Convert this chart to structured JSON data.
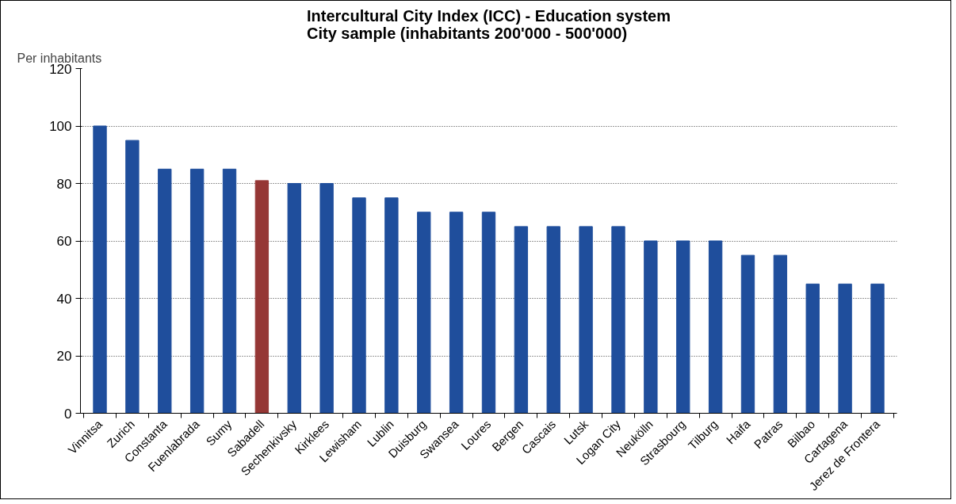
{
  "chart_data": {
    "type": "bar",
    "title": "Intercultural City Index (ICC) - Education system\nCity sample (inhabitants 200'000 - 500'000)",
    "annotations": [
      "Per inhabitants"
    ],
    "categories": [
      "Vinnitsa",
      "Zurich",
      "Constanta",
      "Fuenlabrada",
      "Sumy",
      "Sabadell",
      "Sechenkivsky",
      "Kirklees",
      "Lewisham",
      "Lublin",
      "Duisburg",
      "Swansea",
      "Loures",
      "Bergen",
      "Cascais",
      "Lutsk",
      "Logan City",
      "Neukölln",
      "Strasbourg",
      "Tilburg",
      "Haifa",
      "Patras",
      "Bilbao",
      "Cartagena",
      "Jerez de Frontera"
    ],
    "values": [
      100,
      95,
      85,
      85,
      85,
      81,
      80,
      80,
      75,
      75,
      70,
      70,
      70,
      65,
      65,
      65,
      65,
      60,
      60,
      60,
      55,
      55,
      45,
      45,
      45
    ],
    "colors": [
      "#1f4e9c",
      "#1f4e9c",
      "#1f4e9c",
      "#1f4e9c",
      "#1f4e9c",
      "#953735",
      "#1f4e9c",
      "#1f4e9c",
      "#1f4e9c",
      "#1f4e9c",
      "#1f4e9c",
      "#1f4e9c",
      "#1f4e9c",
      "#1f4e9c",
      "#1f4e9c",
      "#1f4e9c",
      "#1f4e9c",
      "#1f4e9c",
      "#1f4e9c",
      "#1f4e9c",
      "#1f4e9c",
      "#1f4e9c",
      "#1f4e9c",
      "#1f4e9c",
      "#1f4e9c"
    ],
    "ylim": [
      0,
      120
    ],
    "yticks": [
      0,
      20,
      40,
      60,
      80,
      100,
      120
    ],
    "grid": "y"
  }
}
